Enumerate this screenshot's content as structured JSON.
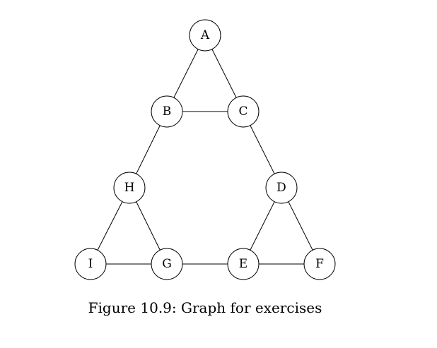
{
  "figure": {
    "caption": "Figure 10.9: Graph for exercises"
  },
  "graph": {
    "nodes": [
      {
        "id": "A",
        "label": "A"
      },
      {
        "id": "B",
        "label": "B"
      },
      {
        "id": "C",
        "label": "C"
      },
      {
        "id": "D",
        "label": "D"
      },
      {
        "id": "E",
        "label": "E"
      },
      {
        "id": "F",
        "label": "F"
      },
      {
        "id": "G",
        "label": "G"
      },
      {
        "id": "H",
        "label": "H"
      },
      {
        "id": "I",
        "label": "I"
      }
    ],
    "edges": [
      [
        "A",
        "B"
      ],
      [
        "A",
        "C"
      ],
      [
        "B",
        "C"
      ],
      [
        "B",
        "H"
      ],
      [
        "C",
        "D"
      ],
      [
        "H",
        "I"
      ],
      [
        "H",
        "G"
      ],
      [
        "I",
        "G"
      ],
      [
        "G",
        "E"
      ],
      [
        "D",
        "E"
      ],
      [
        "D",
        "F"
      ],
      [
        "E",
        "F"
      ]
    ]
  }
}
